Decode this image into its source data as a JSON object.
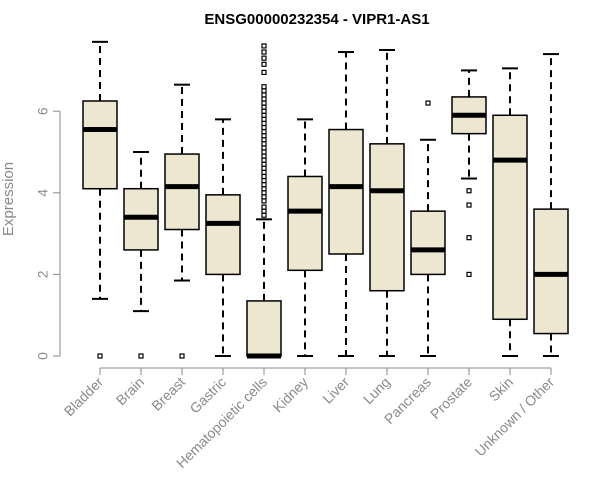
{
  "chart_data": {
    "type": "boxplot",
    "title": "ENSG00000232354 - VIPR1-AS1",
    "xlabel": "",
    "ylabel": "Expression",
    "ylim": [
      0,
      7.8
    ],
    "yticks": [
      0,
      2,
      4,
      6
    ],
    "colors": {
      "box_fill": "#ede6d0",
      "stroke": "#000000",
      "axis": "#8a8a8a"
    },
    "categories": [
      "Bladder",
      "Brain",
      "Breast",
      "Gastric",
      "Hematopoietic cells",
      "Kidney",
      "Liver",
      "Lung",
      "Pancreas",
      "Prostate",
      "Skin",
      "Unknown / Other"
    ],
    "boxes": [
      {
        "name": "Bladder",
        "min": 1.4,
        "q1": 4.1,
        "median": 5.55,
        "q3": 6.25,
        "max": 7.7,
        "outliers": [
          0.0
        ]
      },
      {
        "name": "Brain",
        "min": 1.1,
        "q1": 2.6,
        "median": 3.4,
        "q3": 4.1,
        "max": 5.0,
        "outliers": [
          0.0
        ]
      },
      {
        "name": "Breast",
        "min": 1.85,
        "q1": 3.1,
        "median": 4.15,
        "q3": 4.95,
        "max": 6.65,
        "outliers": [
          0.0
        ]
      },
      {
        "name": "Gastric",
        "min": 0.0,
        "q1": 2.0,
        "median": 3.25,
        "q3": 3.95,
        "max": 5.8,
        "outliers": []
      },
      {
        "name": "Hematopoietic cells",
        "min": 0.0,
        "q1": 0.0,
        "median": 0.0,
        "q3": 1.35,
        "max": 3.35,
        "outliers": [
          3.45,
          3.55,
          3.65,
          3.8,
          3.9,
          4.0,
          4.1,
          4.2,
          4.3,
          4.4,
          4.5,
          4.6,
          4.7,
          4.8,
          4.9,
          5.0,
          5.1,
          5.2,
          5.3,
          5.4,
          5.5,
          5.6,
          5.7,
          5.8,
          5.9,
          6.0,
          6.1,
          6.2,
          6.3,
          6.4,
          6.5,
          6.6,
          6.95,
          7.15,
          7.3,
          7.45,
          7.6
        ]
      },
      {
        "name": "Kidney",
        "min": 0.0,
        "q1": 2.1,
        "median": 3.55,
        "q3": 4.4,
        "max": 5.8,
        "outliers": []
      },
      {
        "name": "Liver",
        "min": 0.0,
        "q1": 2.5,
        "median": 4.15,
        "q3": 5.55,
        "max": 7.45,
        "outliers": []
      },
      {
        "name": "Lung",
        "min": 0.0,
        "q1": 1.6,
        "median": 4.05,
        "q3": 5.2,
        "max": 7.5,
        "outliers": []
      },
      {
        "name": "Pancreas",
        "min": 0.0,
        "q1": 2.0,
        "median": 2.6,
        "q3": 3.55,
        "max": 5.3,
        "outliers": [
          6.2
        ]
      },
      {
        "name": "Prostate",
        "min": 4.35,
        "q1": 5.45,
        "median": 5.9,
        "q3": 6.35,
        "max": 7.0,
        "outliers": [
          4.05,
          3.7,
          2.9,
          2.0
        ]
      },
      {
        "name": "Skin",
        "min": 0.0,
        "q1": 0.9,
        "median": 4.8,
        "q3": 5.9,
        "max": 7.05,
        "outliers": []
      },
      {
        "name": "Unknown / Other",
        "min": 0.0,
        "q1": 0.55,
        "median": 2.0,
        "q3": 3.6,
        "max": 7.4,
        "outliers": []
      }
    ]
  }
}
